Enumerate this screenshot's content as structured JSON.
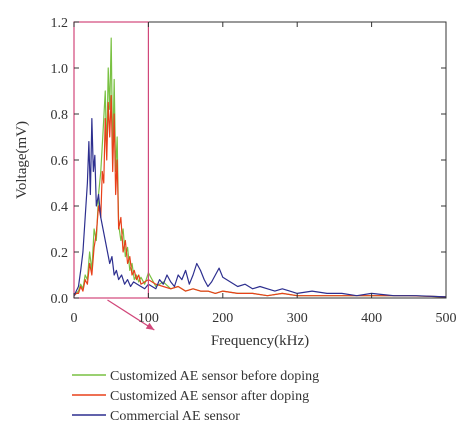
{
  "chart_data": {
    "type": "line",
    "xlabel": "Frequency(kHz)",
    "ylabel": "Voltage(mV)",
    "xlim": [
      0,
      500
    ],
    "ylim": [
      0,
      1.2
    ],
    "x_ticks": [
      0,
      100,
      200,
      300,
      400,
      500
    ],
    "y_ticks": [
      0.0,
      0.2,
      0.4,
      0.6,
      0.8,
      1.0,
      1.2
    ],
    "y_tick_labels": [
      "0.0",
      "0.2",
      "0.4",
      "0.6",
      "0.8",
      "1.0",
      "1.2"
    ],
    "grid": false,
    "legend_position": "bottom",
    "highlight_region": {
      "x_range": [
        0,
        100
      ],
      "y_range": [
        0,
        1.2
      ],
      "color": "#d1477a"
    },
    "series": [
      {
        "name": "Customized AE sensor before doping",
        "color": "#79c142",
        "x": [
          0,
          3,
          6,
          9,
          12,
          15,
          18,
          21,
          24,
          27,
          30,
          33,
          36,
          39,
          42,
          44,
          46,
          48,
          50,
          52,
          54,
          56,
          58,
          60,
          63,
          66,
          69,
          72,
          75,
          78,
          81,
          84,
          87,
          90,
          95,
          100,
          110,
          120,
          130,
          140,
          150,
          160,
          170,
          180,
          190,
          200,
          220,
          240,
          260,
          280,
          300,
          350,
          400,
          450,
          500
        ],
        "values": [
          0.01,
          0.02,
          0.03,
          0.06,
          0.04,
          0.1,
          0.08,
          0.2,
          0.12,
          0.3,
          0.25,
          0.45,
          0.55,
          0.72,
          0.9,
          0.62,
          1.0,
          0.82,
          1.13,
          0.6,
          0.95,
          0.55,
          0.7,
          0.32,
          0.25,
          0.3,
          0.18,
          0.22,
          0.12,
          0.15,
          0.08,
          0.1,
          0.07,
          0.09,
          0.06,
          0.11,
          0.05,
          0.07,
          0.04,
          0.05,
          0.03,
          0.04,
          0.03,
          0.03,
          0.02,
          0.03,
          0.02,
          0.02,
          0.01,
          0.02,
          0.01,
          0.01,
          0.01,
          0.01,
          0.005
        ]
      },
      {
        "name": "Customized AE sensor after doping",
        "color": "#e8401a",
        "x": [
          0,
          3,
          6,
          9,
          12,
          15,
          18,
          21,
          24,
          27,
          30,
          33,
          36,
          38,
          40,
          42,
          44,
          46,
          48,
          50,
          52,
          54,
          56,
          58,
          60,
          63,
          66,
          69,
          72,
          75,
          78,
          81,
          84,
          87,
          90,
          95,
          100,
          110,
          120,
          130,
          140,
          150,
          160,
          170,
          180,
          190,
          200,
          220,
          240,
          260,
          280,
          300,
          350,
          400,
          450,
          500
        ],
        "values": [
          0.01,
          0.02,
          0.02,
          0.05,
          0.03,
          0.08,
          0.06,
          0.15,
          0.1,
          0.22,
          0.28,
          0.4,
          0.35,
          0.55,
          0.5,
          0.78,
          0.6,
          0.85,
          0.7,
          0.88,
          0.55,
          0.8,
          0.45,
          0.6,
          0.3,
          0.35,
          0.2,
          0.25,
          0.15,
          0.18,
          0.1,
          0.12,
          0.08,
          0.1,
          0.06,
          0.07,
          0.08,
          0.06,
          0.05,
          0.04,
          0.05,
          0.03,
          0.04,
          0.03,
          0.03,
          0.02,
          0.03,
          0.02,
          0.02,
          0.01,
          0.02,
          0.01,
          0.01,
          0.01,
          0.01,
          0.005
        ]
      },
      {
        "name": "Commercial AE sensor",
        "color": "#2d2f8f",
        "x": [
          0,
          3,
          6,
          9,
          12,
          15,
          18,
          20,
          22,
          24,
          26,
          28,
          30,
          33,
          36,
          39,
          42,
          45,
          48,
          51,
          54,
          57,
          60,
          64,
          68,
          72,
          76,
          80,
          85,
          90,
          95,
          100,
          105,
          110,
          115,
          120,
          125,
          130,
          135,
          140,
          145,
          150,
          155,
          160,
          165,
          170,
          175,
          180,
          185,
          190,
          195,
          200,
          210,
          220,
          230,
          240,
          250,
          260,
          270,
          280,
          290,
          300,
          320,
          340,
          360,
          380,
          400,
          430,
          460,
          500
        ],
        "values": [
          0.01,
          0.03,
          0.05,
          0.12,
          0.2,
          0.35,
          0.5,
          0.68,
          0.45,
          0.78,
          0.55,
          0.62,
          0.4,
          0.45,
          0.35,
          0.3,
          0.25,
          0.2,
          0.15,
          0.18,
          0.1,
          0.12,
          0.08,
          0.1,
          0.06,
          0.08,
          0.05,
          0.07,
          0.06,
          0.05,
          0.04,
          0.06,
          0.05,
          0.04,
          0.08,
          0.06,
          0.1,
          0.07,
          0.05,
          0.1,
          0.08,
          0.12,
          0.06,
          0.1,
          0.15,
          0.12,
          0.08,
          0.05,
          0.07,
          0.1,
          0.13,
          0.09,
          0.07,
          0.05,
          0.06,
          0.04,
          0.05,
          0.04,
          0.03,
          0.04,
          0.03,
          0.02,
          0.03,
          0.02,
          0.02,
          0.01,
          0.02,
          0.01,
          0.01,
          0.005
        ]
      }
    ]
  }
}
